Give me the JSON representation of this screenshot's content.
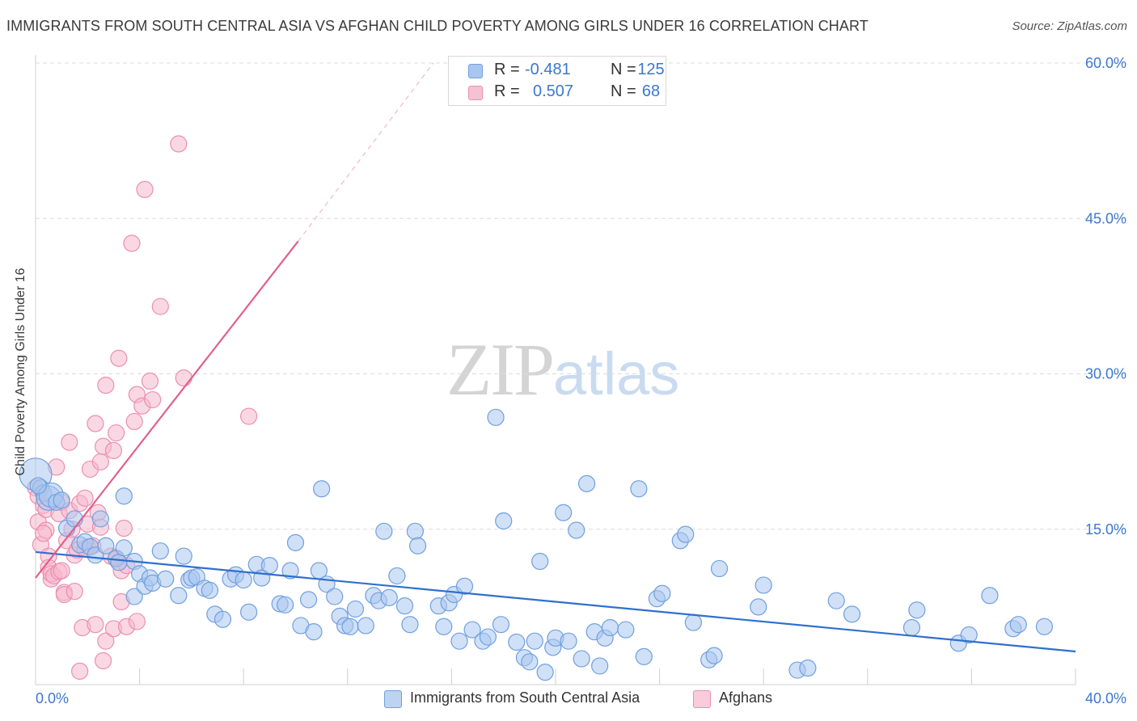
{
  "header": {
    "title": "IMMIGRANTS FROM SOUTH CENTRAL ASIA VS AFGHAN CHILD POVERTY AMONG GIRLS UNDER 16 CORRELATION CHART",
    "source": "Source: ZipAtlas.com"
  },
  "watermark": {
    "zip": "ZIP",
    "atlas": "atlas"
  },
  "stats": {
    "row1": {
      "r_label": "R =",
      "r_value": "-0.481",
      "n_label": "N =",
      "n_value": "125"
    },
    "row2": {
      "r_label": "R =",
      "r_value": "0.507",
      "n_label": "N =",
      "n_value": "68"
    }
  },
  "legend": {
    "series1": "Immigrants from South Central Asia",
    "series2": "Afghans"
  },
  "colors": {
    "blue_fill": "#a9c6ee",
    "blue_stroke": "#6f9fe0",
    "blue_line": "#2f6fcf",
    "pink_fill": "#f5b8cc",
    "pink_stroke": "#ec8eaf",
    "pink_line": "#e0608c",
    "tick_label": "#3d77d0",
    "grid": "#dcdcdc"
  },
  "chart_data": {
    "type": "scatter",
    "title": "IMMIGRANTS FROM SOUTH CENTRAL ASIA VS AFGHAN CHILD POVERTY AMONG GIRLS UNDER 16 CORRELATION CHART",
    "xlabel": "",
    "ylabel": "Child Poverty Among Girls Under 16",
    "xlim": [
      0,
      40
    ],
    "ylim": [
      0,
      60
    ],
    "x_tick_labels": [
      "0.0%",
      "40.0%"
    ],
    "y_ticks": [
      15,
      30,
      45,
      60
    ],
    "y_tick_labels": [
      "15.0%",
      "30.0%",
      "45.0%",
      "60.0%"
    ],
    "grid": true,
    "legend_position": "bottom-center",
    "series": [
      {
        "name": "Immigrants from South Central Asia",
        "R": -0.481,
        "N": 125,
        "trend": {
          "x": [
            0,
            40
          ],
          "y": [
            12.8,
            3.2
          ]
        },
        "points": [
          [
            0.0,
            20.3
          ],
          [
            0.2,
            19.0
          ],
          [
            0.3,
            18.5
          ],
          [
            0.5,
            18.0
          ],
          [
            0.6,
            18.3
          ],
          [
            0.8,
            17.6
          ],
          [
            1.0,
            17.8
          ],
          [
            1.2,
            15.1
          ],
          [
            1.5,
            16.0
          ],
          [
            1.7,
            13.5
          ],
          [
            1.9,
            13.8
          ],
          [
            2.1,
            13.3
          ],
          [
            2.3,
            12.5
          ],
          [
            2.5,
            16.0
          ],
          [
            2.7,
            13.4
          ],
          [
            3.1,
            12.2
          ],
          [
            3.2,
            11.8
          ],
          [
            3.4,
            13.2
          ],
          [
            3.4,
            18.2
          ],
          [
            3.8,
            11.9
          ],
          [
            3.8,
            8.5
          ],
          [
            4.0,
            10.7
          ],
          [
            4.2,
            9.5
          ],
          [
            4.4,
            10.3
          ],
          [
            4.5,
            9.8
          ],
          [
            4.8,
            12.9
          ],
          [
            5.0,
            10.2
          ],
          [
            5.5,
            8.6
          ],
          [
            5.7,
            12.4
          ],
          [
            5.9,
            10.1
          ],
          [
            6.0,
            10.3
          ],
          [
            6.2,
            10.4
          ],
          [
            6.5,
            9.3
          ],
          [
            6.7,
            9.1
          ],
          [
            6.9,
            6.8
          ],
          [
            7.2,
            6.3
          ],
          [
            7.5,
            10.2
          ],
          [
            7.7,
            10.6
          ],
          [
            8.0,
            10.1
          ],
          [
            8.2,
            7.0
          ],
          [
            8.5,
            11.6
          ],
          [
            8.7,
            10.3
          ],
          [
            9.0,
            11.5
          ],
          [
            9.4,
            7.8
          ],
          [
            9.6,
            7.7
          ],
          [
            9.8,
            11.0
          ],
          [
            10.0,
            13.7
          ],
          [
            10.2,
            5.7
          ],
          [
            10.5,
            8.2
          ],
          [
            10.7,
            5.1
          ],
          [
            10.9,
            11.0
          ],
          [
            11.0,
            18.9
          ],
          [
            11.2,
            9.7
          ],
          [
            11.5,
            8.5
          ],
          [
            11.7,
            6.6
          ],
          [
            11.9,
            5.7
          ],
          [
            12.1,
            5.6
          ],
          [
            12.3,
            7.3
          ],
          [
            12.7,
            5.7
          ],
          [
            13.0,
            8.6
          ],
          [
            13.2,
            8.1
          ],
          [
            13.4,
            14.8
          ],
          [
            13.6,
            8.4
          ],
          [
            13.9,
            10.5
          ],
          [
            14.2,
            7.6
          ],
          [
            14.4,
            5.8
          ],
          [
            14.6,
            14.8
          ],
          [
            14.7,
            13.4
          ],
          [
            15.5,
            7.6
          ],
          [
            15.7,
            5.6
          ],
          [
            15.9,
            7.9
          ],
          [
            16.1,
            8.7
          ],
          [
            16.3,
            4.2
          ],
          [
            16.5,
            9.5
          ],
          [
            16.8,
            5.3
          ],
          [
            17.2,
            4.2
          ],
          [
            17.4,
            4.6
          ],
          [
            17.7,
            25.8
          ],
          [
            17.9,
            5.8
          ],
          [
            18.0,
            15.8
          ],
          [
            18.5,
            4.1
          ],
          [
            18.8,
            2.6
          ],
          [
            19.0,
            2.2
          ],
          [
            19.2,
            4.2
          ],
          [
            19.4,
            11.9
          ],
          [
            19.6,
            1.2
          ],
          [
            19.9,
            3.6
          ],
          [
            20.0,
            4.5
          ],
          [
            20.3,
            16.6
          ],
          [
            20.5,
            4.2
          ],
          [
            20.8,
            14.9
          ],
          [
            21.0,
            2.5
          ],
          [
            21.2,
            19.4
          ],
          [
            21.5,
            5.1
          ],
          [
            21.7,
            1.8
          ],
          [
            21.9,
            4.5
          ],
          [
            22.1,
            5.5
          ],
          [
            22.7,
            5.3
          ],
          [
            23.2,
            18.9
          ],
          [
            23.4,
            2.7
          ],
          [
            23.9,
            8.3
          ],
          [
            24.1,
            8.8
          ],
          [
            24.8,
            13.9
          ],
          [
            25.0,
            14.5
          ],
          [
            25.3,
            6.0
          ],
          [
            25.9,
            2.4
          ],
          [
            26.1,
            2.8
          ],
          [
            26.3,
            11.2
          ],
          [
            27.8,
            7.5
          ],
          [
            28.0,
            9.6
          ],
          [
            29.3,
            1.4
          ],
          [
            29.7,
            1.6
          ],
          [
            30.8,
            8.1
          ],
          [
            31.4,
            6.8
          ],
          [
            33.7,
            5.5
          ],
          [
            33.9,
            7.2
          ],
          [
            35.5,
            4.0
          ],
          [
            35.9,
            4.8
          ],
          [
            36.7,
            8.6
          ],
          [
            37.6,
            5.4
          ],
          [
            37.8,
            5.8
          ],
          [
            38.8,
            5.6
          ],
          [
            0.1,
            19.2
          ]
        ]
      },
      {
        "name": "Afghans",
        "R": 0.507,
        "N": 68,
        "trend": {
          "x": [
            0,
            10.1
          ],
          "y": [
            10.3,
            42.8
          ]
        },
        "trend_dashed": {
          "x": [
            10.1,
            15.3
          ],
          "y": [
            42.8,
            60.0
          ]
        },
        "points": [
          [
            0.0,
            19.0
          ],
          [
            0.1,
            18.2
          ],
          [
            0.1,
            15.7
          ],
          [
            0.2,
            13.5
          ],
          [
            0.3,
            17.3
          ],
          [
            0.4,
            16.9
          ],
          [
            0.4,
            14.9
          ],
          [
            0.5,
            12.4
          ],
          [
            0.5,
            11.3
          ],
          [
            0.6,
            10.2
          ],
          [
            0.6,
            10.7
          ],
          [
            0.7,
            10.5
          ],
          [
            0.8,
            21.0
          ],
          [
            0.9,
            16.5
          ],
          [
            0.9,
            10.9
          ],
          [
            1.0,
            17.6
          ],
          [
            1.1,
            8.9
          ],
          [
            1.1,
            8.7
          ],
          [
            1.2,
            13.9
          ],
          [
            1.3,
            23.4
          ],
          [
            1.3,
            16.8
          ],
          [
            1.4,
            15.0
          ],
          [
            1.5,
            12.5
          ],
          [
            1.5,
            9.0
          ],
          [
            1.6,
            13.0
          ],
          [
            1.7,
            17.5
          ],
          [
            1.7,
            1.3
          ],
          [
            1.8,
            5.5
          ],
          [
            1.9,
            18.0
          ],
          [
            2.0,
            15.5
          ],
          [
            2.0,
            13.3
          ],
          [
            2.1,
            20.8
          ],
          [
            2.2,
            13.4
          ],
          [
            2.3,
            5.8
          ],
          [
            2.3,
            25.2
          ],
          [
            2.4,
            16.6
          ],
          [
            2.5,
            15.2
          ],
          [
            2.5,
            21.5
          ],
          [
            2.6,
            23.0
          ],
          [
            2.7,
            28.9
          ],
          [
            2.7,
            4.2
          ],
          [
            2.6,
            2.3
          ],
          [
            3.0,
            22.6
          ],
          [
            3.0,
            5.4
          ],
          [
            3.1,
            12.1
          ],
          [
            3.1,
            24.3
          ],
          [
            3.2,
            31.5
          ],
          [
            3.3,
            11.0
          ],
          [
            3.3,
            8.0
          ],
          [
            3.4,
            15.1
          ],
          [
            3.5,
            5.6
          ],
          [
            3.5,
            11.5
          ],
          [
            3.7,
            42.6
          ],
          [
            3.8,
            25.4
          ],
          [
            3.9,
            6.1
          ],
          [
            3.9,
            28.0
          ],
          [
            4.1,
            26.9
          ],
          [
            4.2,
            47.8
          ],
          [
            4.4,
            29.3
          ],
          [
            4.5,
            27.5
          ],
          [
            4.8,
            36.5
          ],
          [
            5.5,
            52.2
          ],
          [
            5.7,
            29.6
          ],
          [
            8.2,
            25.9
          ],
          [
            1.0,
            11.0
          ],
          [
            1.9,
            13.1
          ],
          [
            2.9,
            12.4
          ],
          [
            0.3,
            14.6
          ]
        ]
      }
    ]
  }
}
